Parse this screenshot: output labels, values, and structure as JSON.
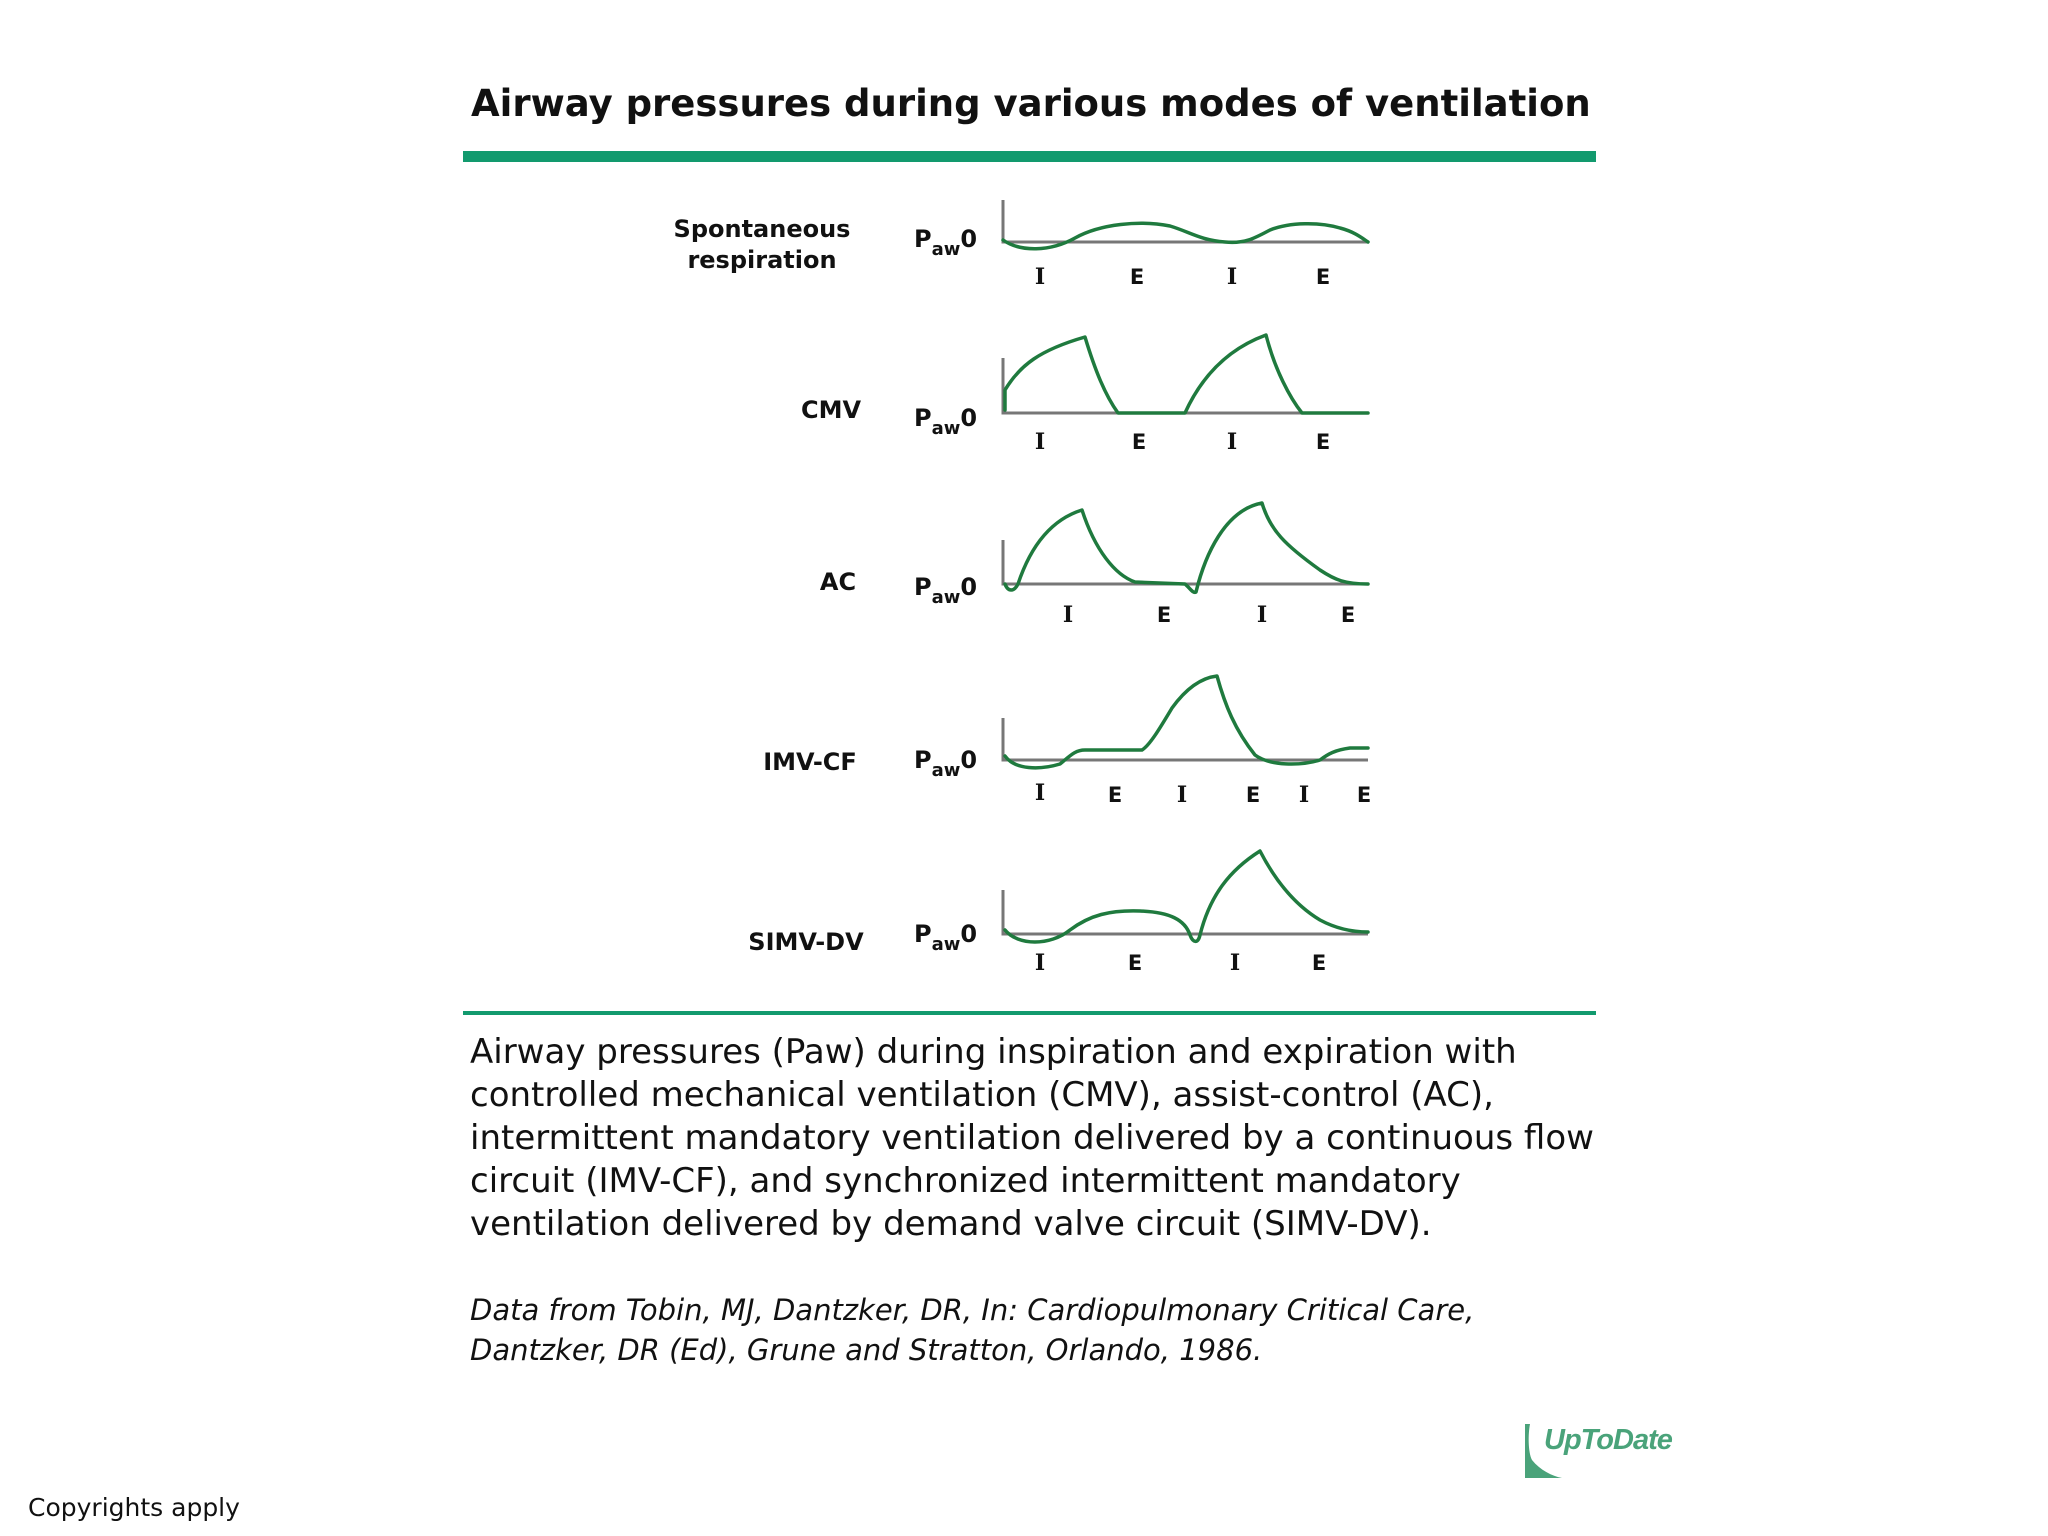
{
  "title": "Airway pressures during various modes of ventilation",
  "axis_label_main": "P",
  "axis_label_sub": "aw",
  "axis_label_zero": "0",
  "rows": [
    {
      "label_lines": [
        "Spontaneous",
        "respiration"
      ],
      "phases": [
        "I",
        "E",
        "I",
        "E"
      ]
    },
    {
      "label_lines": [
        "CMV"
      ],
      "phases": [
        "I",
        "E",
        "I",
        "E"
      ]
    },
    {
      "label_lines": [
        "AC"
      ],
      "phases": [
        "I",
        "E",
        "I",
        "E"
      ]
    },
    {
      "label_lines": [
        "IMV-CF"
      ],
      "phases": [
        "I",
        "E",
        "I",
        "E",
        "I",
        "E"
      ]
    },
    {
      "label_lines": [
        "SIMV-DV"
      ],
      "phases": [
        "I",
        "E",
        "I",
        "E"
      ]
    }
  ],
  "caption": "Airway pressures (Paw) during inspiration and expiration with controlled mechanical ventilation (CMV), assist-control (AC), intermittent mandatory ventilation delivered by a continuous flow circuit (IMV-CF), and synchronized intermittent mandatory ventilation delivered by demand valve circuit (SIMV-DV).",
  "source_line1": "Data from Tobin, MJ, Dantzker, DR, In: Cardiopulmonary Critical Care,",
  "source_line2": "Dantzker, DR (Ed), Grune and Stratton, Orlando, 1986.",
  "copyright": "Copyrights apply",
  "logo_text": "UpToDate",
  "colors": {
    "accent_rule": "#129a6e",
    "waveform": "#1f7a3e",
    "axis": "#777777"
  }
}
